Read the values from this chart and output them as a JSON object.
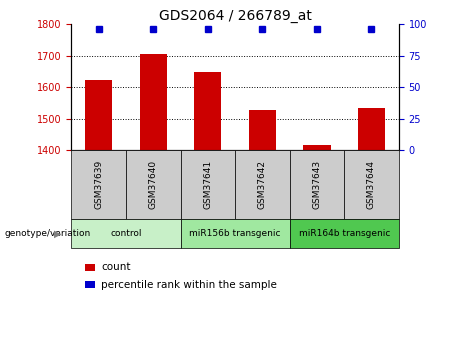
{
  "title": "GDS2064 / 266789_at",
  "samples": [
    "GSM37639",
    "GSM37640",
    "GSM37641",
    "GSM37642",
    "GSM37643",
    "GSM37644"
  ],
  "counts": [
    1622,
    1706,
    1647,
    1528,
    1415,
    1535
  ],
  "percentile_ranks": [
    100,
    100,
    100,
    100,
    100,
    100
  ],
  "ylim_left": [
    1400,
    1800
  ],
  "ylim_right": [
    0,
    100
  ],
  "yticks_left": [
    1400,
    1500,
    1600,
    1700,
    1800
  ],
  "yticks_right": [
    0,
    25,
    50,
    75,
    100
  ],
  "groups": [
    {
      "label": "control",
      "indices": [
        0,
        1
      ],
      "color": "#c8f0c8"
    },
    {
      "label": "miR156b transgenic",
      "indices": [
        2,
        3
      ],
      "color": "#a0e8a0"
    },
    {
      "label": "miR164b transgenic",
      "indices": [
        4,
        5
      ],
      "color": "#50c850"
    }
  ],
  "bar_color": "#cc0000",
  "dot_color": "#0000cc",
  "bar_width": 0.5,
  "grid_color": "#000000",
  "left_tick_color": "#cc0000",
  "right_tick_color": "#0000cc",
  "sample_box_color": "#cccccc",
  "legend_items": [
    {
      "label": "count",
      "color": "#cc0000"
    },
    {
      "label": "percentile rank within the sample",
      "color": "#0000cc"
    }
  ],
  "genotype_label": "genotype/variation"
}
